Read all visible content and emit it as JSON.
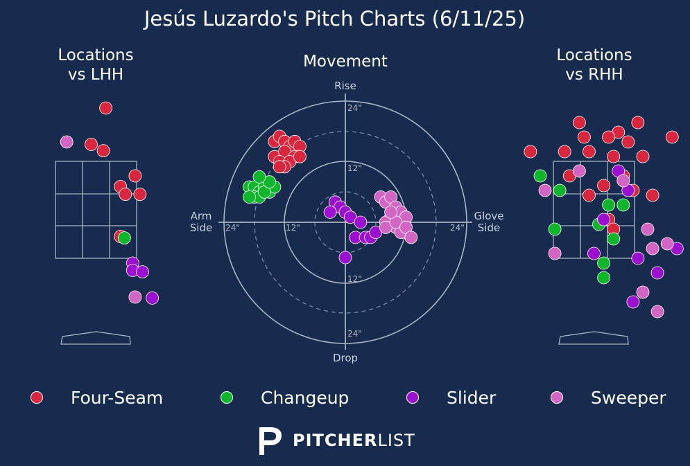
{
  "title": "Jesús Luzardo's Pitch Charts (6/11/25)",
  "panels": {
    "lhh_title": "Locations\nvs LHH",
    "movement_title": "Movement",
    "rhh_title": "Locations\nvs RHH"
  },
  "movement_axis": {
    "rise": "Rise",
    "drop": "Drop",
    "arm_side": "Arm\nSide",
    "glove_side": "Glove\nSide",
    "ring_labels": [
      "12\"",
      "24\""
    ]
  },
  "colors": {
    "Four-Seam": "#d7263d",
    "Changeup": "#0fb52a",
    "Slider": "#9b0fd0",
    "Sweeper": "#d366c4",
    "background": "#162b4d"
  },
  "legend": [
    "Four-Seam",
    "Changeup",
    "Slider",
    "Sweeper"
  ],
  "brand": {
    "bold": "PITCHER",
    "light": "LIST"
  },
  "chart_data": [
    {
      "type": "scatter",
      "title": "Locations vs LHH",
      "xlim": [
        -2.5,
        2.5
      ],
      "ylim": [
        -0.5,
        5.2
      ],
      "grid": false,
      "series": [
        {
          "name": "Four-Seam",
          "x": [
            0.2,
            -0.1,
            0.15,
            0.8,
            0.5,
            0.6,
            0.9,
            0.5
          ],
          "y": [
            4.6,
            3.85,
            3.72,
            3.2,
            2.98,
            2.82,
            2.82,
            1.95
          ]
        },
        {
          "name": "Changeup",
          "x": [
            0.58
          ],
          "y": [
            1.92
          ]
        },
        {
          "name": "Slider",
          "x": [
            0.75,
            0.75,
            0.95,
            1.15
          ],
          "y": [
            1.4,
            1.25,
            1.22,
            0.68
          ]
        },
        {
          "name": "Sweeper",
          "x": [
            -0.6,
            0.8
          ],
          "y": [
            3.9,
            0.7
          ]
        }
      ]
    },
    {
      "type": "scatter",
      "title": "Movement",
      "xlim": [
        -24,
        24
      ],
      "ylim": [
        -24,
        24
      ],
      "grid": true,
      "series": [
        {
          "name": "Four-Seam",
          "x": [
            -14,
            -13,
            -12,
            -11,
            -10,
            -9,
            -14,
            -12,
            -10,
            -13,
            -11,
            -9,
            -12,
            -13
          ],
          "y": [
            16,
            17,
            16,
            15,
            16,
            15,
            13,
            14,
            13,
            12,
            12,
            13,
            11,
            11
          ]
        },
        {
          "name": "Changeup",
          "x": [
            -19,
            -18,
            -17,
            -16,
            -15,
            -14,
            -18,
            -17,
            -16,
            -19,
            -15,
            -17
          ],
          "y": [
            7,
            7,
            6,
            7,
            6,
            7,
            5,
            5,
            6,
            5,
            8,
            9
          ]
        },
        {
          "name": "Slider",
          "x": [
            -2,
            -1,
            0,
            1,
            3,
            2,
            4,
            5,
            6,
            -3,
            0
          ],
          "y": [
            4,
            3,
            2,
            1,
            0,
            -3,
            -3,
            -3,
            -2,
            2,
            -7
          ]
        },
        {
          "name": "Sweeper",
          "x": [
            7,
            8,
            9,
            10,
            11,
            9,
            8,
            10,
            12,
            11,
            8,
            10,
            9,
            12,
            13
          ],
          "y": [
            5,
            4,
            5,
            3,
            2,
            1,
            0,
            -1,
            1,
            -2,
            -1,
            0,
            2,
            -1,
            -3
          ]
        }
      ]
    },
    {
      "type": "scatter",
      "title": "Locations vs RHH",
      "xlim": [
        -2.5,
        2.5
      ],
      "ylim": [
        -0.5,
        5.2
      ],
      "grid": false,
      "series": [
        {
          "name": "Four-Seam",
          "x": [
            -0.3,
            0.5,
            0.9,
            1.6,
            -1.3,
            -0.2,
            0.3,
            0.7,
            1.0,
            -0.6,
            -0.1,
            0.4,
            -0.5,
            0.6,
            0.2,
            -0.1,
            0.8,
            0.3,
            1.2,
            0.4
          ],
          "y": [
            4.3,
            4.1,
            4.3,
            4.0,
            3.7,
            4.0,
            4.0,
            3.9,
            3.6,
            3.7,
            3.7,
            3.6,
            3.2,
            3.2,
            3.0,
            2.8,
            2.9,
            2.3,
            2.8,
            2.1
          ]
        },
        {
          "name": "Changeup",
          "x": [
            -1.1,
            -0.7,
            0.3,
            0.6,
            0.1,
            -0.8,
            0.4,
            0.2,
            0.2
          ],
          "y": [
            3.2,
            2.9,
            2.6,
            2.6,
            2.2,
            2.1,
            1.9,
            1.4,
            1.1
          ]
        },
        {
          "name": "Slider",
          "x": [
            0.5,
            0.2,
            0.7,
            0.9,
            1.3,
            0.8,
            0.0,
            1.7
          ],
          "y": [
            3.3,
            2.3,
            2.9,
            1.5,
            1.2,
            0.6,
            1.6,
            1.7
          ]
        },
        {
          "name": "Sweeper",
          "x": [
            -0.3,
            -1.0,
            0.6,
            1.1,
            1.2,
            1.0,
            -0.8,
            1.5,
            1.3
          ],
          "y": [
            3.3,
            2.9,
            3.1,
            2.1,
            1.7,
            0.8,
            1.6,
            1.8,
            0.4
          ]
        }
      ]
    }
  ]
}
